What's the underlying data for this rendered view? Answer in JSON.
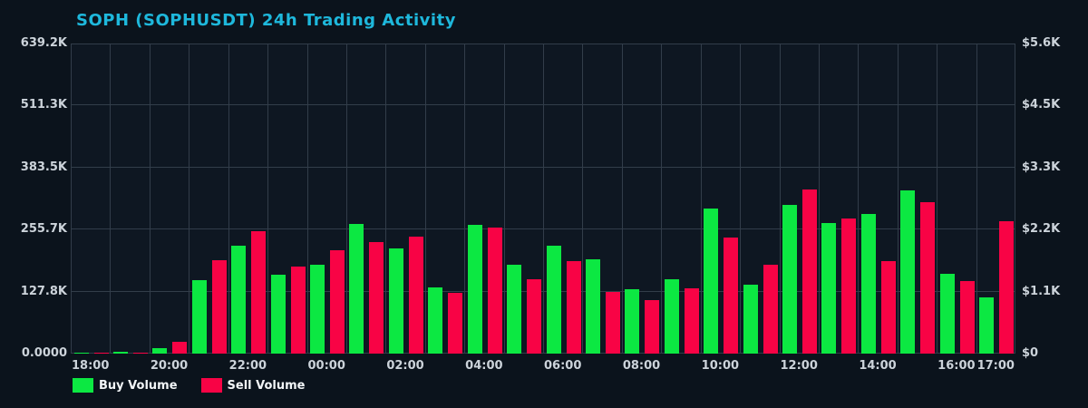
{
  "title": "SOPH (SOPHUSDT) 24h Trading Activity",
  "colors": {
    "buy": "#0ce842",
    "sell": "#f80345",
    "title": "#1eb8dc",
    "figure_background": "#0b131c",
    "plot_background": "#0e1722",
    "gridline": "#323d4a",
    "tick_text": "#ccd3da",
    "legend_text": "#f2f5f7"
  },
  "legend": {
    "items": [
      {
        "label": "Buy Volume",
        "color_key": "buy"
      },
      {
        "label": "Sell Volume",
        "color_key": "sell"
      }
    ]
  },
  "chart_data": {
    "type": "bar",
    "title": "SOPH (SOPHUSDT) 24h Trading Activity",
    "grid": true,
    "legend_position": "bottom-left",
    "categories": [
      "18:00",
      "19:00",
      "20:00",
      "21:00",
      "22:00",
      "23:00",
      "00:00",
      "01:00",
      "02:00",
      "03:00",
      "04:00",
      "05:00",
      "06:00",
      "07:00",
      "08:00",
      "09:00",
      "10:00",
      "11:00",
      "12:00",
      "13:00",
      "14:00",
      "15:00",
      "16:00",
      "17:00"
    ],
    "series": [
      {
        "name": "Buy Volume",
        "values": [
          2000,
          3000,
          11000,
          151000,
          223000,
          163000,
          183000,
          267000,
          217000,
          137000,
          266000,
          183000,
          223000,
          195000,
          132000,
          154000,
          300000,
          143000,
          306000,
          270000,
          287000,
          337000,
          165000,
          116000
        ]
      },
      {
        "name": "Sell Volume",
        "values": [
          2000,
          2000,
          25000,
          192000,
          252000,
          180000,
          214000,
          230000,
          242000,
          126000,
          259000,
          153000,
          191000,
          128000,
          111000,
          135000,
          240000,
          184000,
          339000,
          278000,
          191000,
          313000,
          149000,
          273000
        ]
      }
    ],
    "y_axis_left": {
      "ticks": [
        {
          "label": "0.0000",
          "value": 0
        },
        {
          "label": "127.8K",
          "value": 127840
        },
        {
          "label": "255.7K",
          "value": 255680
        },
        {
          "label": "383.5K",
          "value": 383520
        },
        {
          "label": "511.3K",
          "value": 511360
        },
        {
          "label": "639.2K",
          "value": 639200
        }
      ],
      "max": 639200
    },
    "y_axis_right": {
      "ticks": [
        {
          "label": "$0",
          "value": 0
        },
        {
          "label": "$1.1K",
          "value": 127840
        },
        {
          "label": "$2.2K",
          "value": 255680
        },
        {
          "label": "$3.3K",
          "value": 383520
        },
        {
          "label": "$4.5K",
          "value": 511360
        },
        {
          "label": "$5.6K",
          "value": 639200
        }
      ],
      "max": 639200
    },
    "x_axis": {
      "tick_labels": [
        {
          "label": "18:00",
          "slot": 0
        },
        {
          "label": "20:00",
          "slot": 2
        },
        {
          "label": "22:00",
          "slot": 4
        },
        {
          "label": "00:00",
          "slot": 6
        },
        {
          "label": "02:00",
          "slot": 8
        },
        {
          "label": "04:00",
          "slot": 10
        },
        {
          "label": "06:00",
          "slot": 12
        },
        {
          "label": "08:00",
          "slot": 14
        },
        {
          "label": "10:00",
          "slot": 16
        },
        {
          "label": "12:00",
          "slot": 18
        },
        {
          "label": "14:00",
          "slot": 20
        },
        {
          "label": "16:00",
          "slot": 22
        },
        {
          "label": "17:00",
          "slot": 23
        }
      ]
    }
  }
}
